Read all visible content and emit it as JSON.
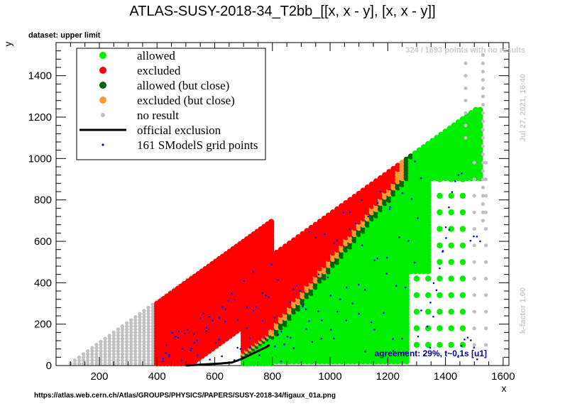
{
  "chart_data": {
    "type": "scatter",
    "title": "ATLAS-SUSY-2018-34_T2bb_[[x, x - y], [x, x - y]]",
    "dataset_label": "dataset: upper limit",
    "xlabel": "x",
    "ylabel": "y",
    "xlim": [
      50,
      1620
    ],
    "ylim": [
      0,
      1560
    ],
    "xticks": [
      200,
      400,
      600,
      800,
      1000,
      1200,
      1400,
      1600
    ],
    "yticks": [
      0,
      200,
      400,
      600,
      800,
      1000,
      1200,
      1400
    ],
    "grid": false,
    "legend_position": "top-left",
    "legend": [
      {
        "label": "allowed",
        "kind": "dot",
        "color": "#00ee00"
      },
      {
        "label": "excluded",
        "kind": "dot",
        "color": "#ff0000"
      },
      {
        "label": "allowed (but close)",
        "kind": "dot",
        "color": "#006400"
      },
      {
        "label": "excluded (but close)",
        "kind": "dot",
        "color": "#ff9933"
      },
      {
        "label": "no result",
        "kind": "smalldot",
        "color": "#c0c0c0"
      },
      {
        "label": "official exclusion",
        "kind": "line",
        "color": "#000000"
      },
      {
        "label": "161 SModelS grid points",
        "kind": "tinydot",
        "color": "#0000ff"
      }
    ],
    "no_results_note": "324 / 1693 points with no results",
    "timestamp": "Jul 27, 2021, 16:40",
    "k_factor": "k-factor 1.00",
    "agreement": "agreement: 29%, t~0.1s [u1]",
    "official_exclusion": {
      "x": [
        500,
        560,
        620,
        660,
        690,
        720,
        750,
        780,
        790
      ],
      "y": [
        0,
        5,
        10,
        15,
        30,
        50,
        70,
        90,
        100
      ]
    },
    "colors": {
      "allowed": "#00ee00",
      "excluded": "#ff0000",
      "allowed_close": "#006400",
      "excluded_close": "#ff9933",
      "no_result": "#c0c0c0",
      "smodels": "#0000ff",
      "agreement_text": "#00008b"
    }
  },
  "footer_url": "https://atlas.web.cern.ch/Atlas/GROUPS/PHYSICS/PAPERS/SUSY-2018-34/figaux_01a.png"
}
